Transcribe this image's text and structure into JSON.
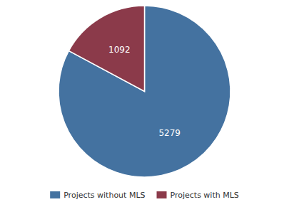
{
  "chart_data": {
    "type": "pie",
    "categories": [
      "Projects without MLS",
      "Projects with MLS"
    ],
    "values": [
      5279,
      1092
    ],
    "colors": [
      "#4472a0",
      "#8b3a4a"
    ],
    "data_labels": true,
    "legend": "bottom"
  }
}
